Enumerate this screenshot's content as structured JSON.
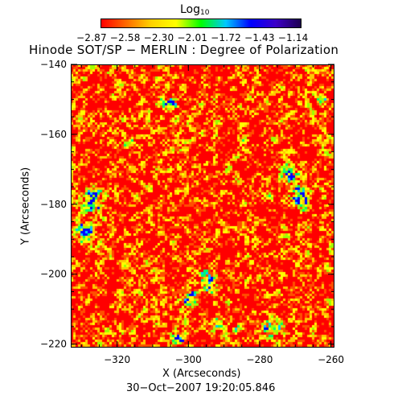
{
  "colorbar": {
    "title_main": "Log",
    "title_sub": "10",
    "tick_labels": "−2.87 −2.58 −2.30 −2.01 −1.72 −1.43 −1.14",
    "colors": [
      "#ff0000",
      "#ff6a00",
      "#ffd200",
      "#ffff00",
      "#00ff00",
      "#00c8ff",
      "#0000ff",
      "#3c00c8",
      "#1e0050"
    ]
  },
  "title": "Hinode SOT/SP − MERLIN : Degree of Polarization",
  "x_axis": {
    "label": "X (Arcseconds)",
    "ticks": [
      {
        "value": -320,
        "label": "−320"
      },
      {
        "value": -300,
        "label": "−300"
      },
      {
        "value": -280,
        "label": "−280"
      },
      {
        "value": -260,
        "label": "−260"
      }
    ],
    "range": [
      -333,
      -259
    ]
  },
  "y_axis": {
    "label": "Y (Arcseconds)",
    "ticks": [
      {
        "value": -140,
        "label": "−140"
      },
      {
        "value": -160,
        "label": "−160"
      },
      {
        "value": -180,
        "label": "−180"
      },
      {
        "value": -200,
        "label": "−200"
      },
      {
        "value": -220,
        "label": "−220"
      }
    ],
    "range": [
      -221,
      -140
    ]
  },
  "timestamp": "30−Oct−2007 19:20:05.846",
  "image": {
    "description_colors": {
      "background": "#ff0000",
      "mid": "#ffff00",
      "high": "#00ff00",
      "higher": "#00c8ff",
      "peak": "#0000ff"
    }
  }
}
